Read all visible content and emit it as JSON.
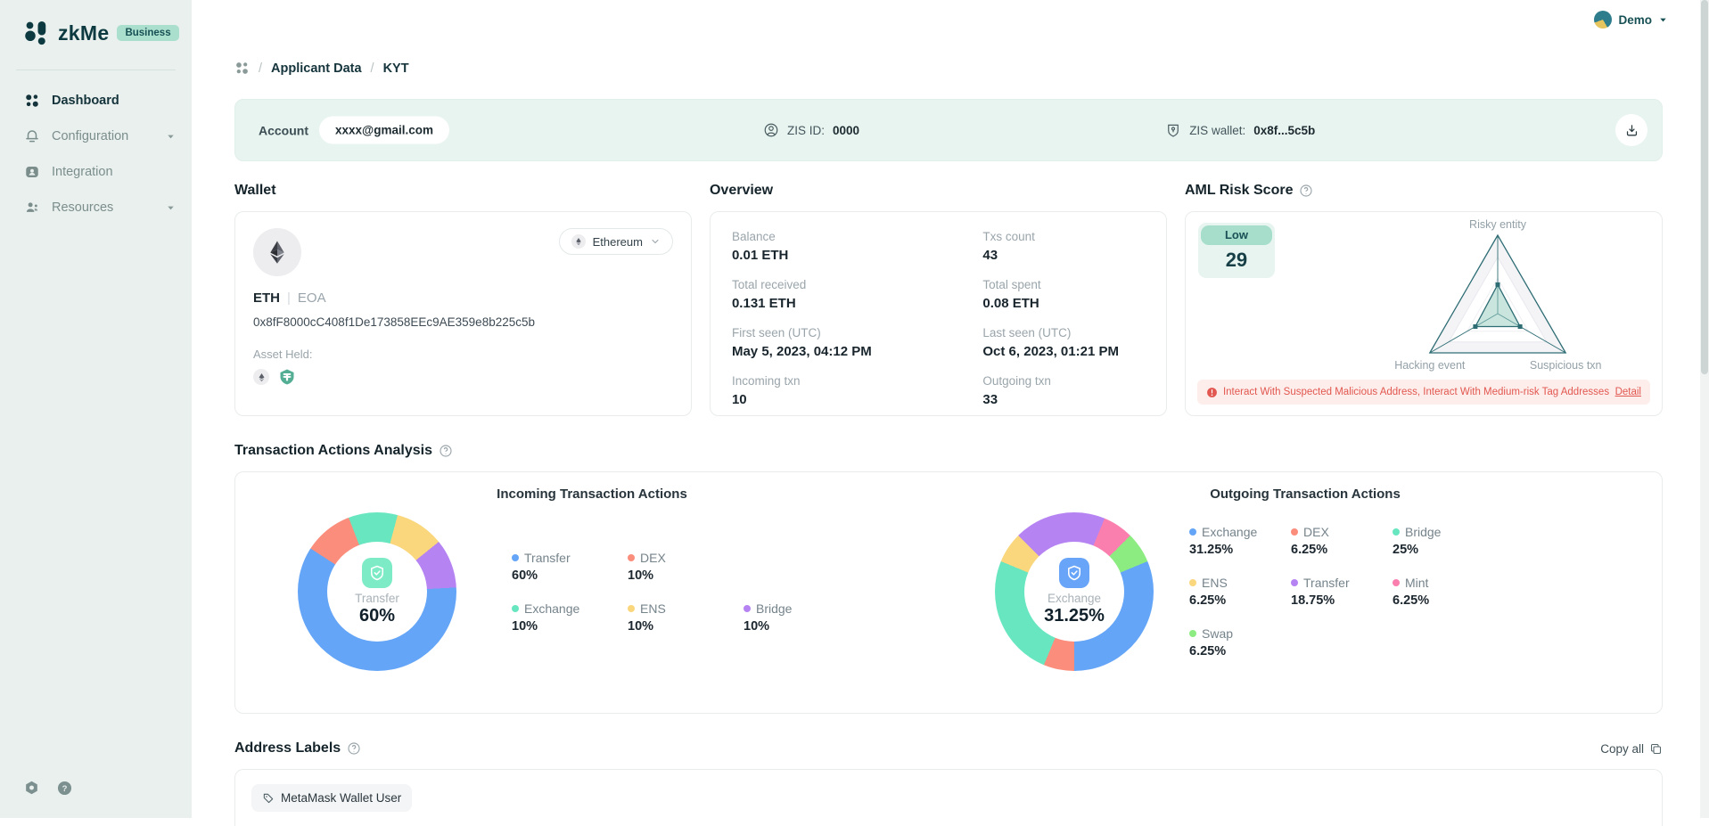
{
  "topbar": {
    "user": "Demo"
  },
  "sidebar": {
    "logo_text": "zkMe",
    "logo_badge": "Business",
    "items": [
      {
        "label": "Dashboard"
      },
      {
        "label": "Configuration"
      },
      {
        "label": "Integration"
      },
      {
        "label": "Resources"
      }
    ]
  },
  "breadcrumb": {
    "items": [
      "Applicant Data",
      "KYT"
    ]
  },
  "account_bar": {
    "account_label": "Account",
    "account_value": "xxxx@gmail.com",
    "zis_id_label": "ZIS ID:",
    "zis_id_value": "0000",
    "zis_wallet_label": "ZIS wallet:",
    "zis_wallet_value": "0x8f...5c5b"
  },
  "wallet": {
    "section_title": "Wallet",
    "network_select": "Ethereum",
    "symbol": "ETH",
    "account_type": "EOA",
    "address": "0x8fF8000cC408f1De173858EEc9AE359e8b225c5b",
    "asset_held_label": "Asset Held:"
  },
  "overview": {
    "section_title": "Overview",
    "stats": [
      {
        "label": "Balance",
        "value": "0.01 ETH"
      },
      {
        "label": "Txs count",
        "value": "43"
      },
      {
        "label": "Total received",
        "value": "0.131 ETH"
      },
      {
        "label": "Total spent",
        "value": "0.08 ETH"
      },
      {
        "label": "First seen (UTC)",
        "value": "May 5, 2023, 04:12 PM"
      },
      {
        "label": "Last seen (UTC)",
        "value": "Oct 6, 2023, 01:21 PM"
      },
      {
        "label": "Incoming txn",
        "value": "10"
      },
      {
        "label": "Outgoing txn",
        "value": "33"
      }
    ]
  },
  "aml": {
    "section_title": "AML Risk Score",
    "level": "Low",
    "score": "29",
    "alert_text": "Interact With Suspected Malicious Address, Interact With Medium-risk Tag Addresses",
    "detail_link": "Detail"
  },
  "transactions": {
    "section_title": "Transaction Actions Analysis"
  },
  "address_labels": {
    "section_title": "Address Labels",
    "copy_all": "Copy all",
    "labels": [
      "MetaMask Wallet User"
    ]
  },
  "colors": {
    "accent_teal": "#1b5056",
    "badge_mint": "#a6decb",
    "alert_red": "#e2574f",
    "sidebar_bg": "#e9f0ee",
    "bar_mint": "#e8f4f0"
  },
  "chart_data": [
    {
      "id": "aml_radar",
      "type": "radar",
      "axes": [
        "Risky entity",
        "Hacking event",
        "Suspicious txn"
      ],
      "values": [
        37,
        33,
        33
      ],
      "max": 100,
      "grid_levels": [
        1,
        0.72,
        0.45
      ],
      "stroke": "#2e6d74",
      "fill": "rgba(147,204,190,0.5)",
      "label_color": "#93a0a7"
    },
    {
      "id": "incoming",
      "type": "pie",
      "title": "Incoming Transaction Actions",
      "center": {
        "label": "Transfer",
        "value": "60%",
        "icon_bg": "#7debc6"
      },
      "start_angle_deg": -21,
      "draw_order": [
        "Exchange",
        "ENS",
        "Bridge",
        "Transfer",
        "DEX"
      ],
      "segments": [
        {
          "label": "Transfer",
          "pct": 60,
          "color": "#64a5f7"
        },
        {
          "label": "DEX",
          "pct": 10,
          "color": "#fb8d7c"
        },
        {
          "label": "Exchange",
          "pct": 10,
          "color": "#68e6c0"
        },
        {
          "label": "ENS",
          "pct": 10,
          "color": "#fad77c"
        },
        {
          "label": "Bridge",
          "pct": 10,
          "color": "#b583f2"
        }
      ],
      "legend_rows": [
        [
          "Transfer",
          "DEX"
        ],
        [
          "Exchange",
          "ENS",
          "Bridge"
        ]
      ],
      "legend_position": "right"
    },
    {
      "id": "outgoing",
      "type": "pie",
      "title": "Outgoing Transaction Actions",
      "center": {
        "label": "Exchange",
        "value": "31.25%",
        "icon_bg": "#68a4f8"
      },
      "start_angle_deg": -45,
      "draw_order": [
        "Transfer",
        "Mint",
        "Swap",
        "Exchange",
        "DEX",
        "Bridge",
        "ENS"
      ],
      "segments": [
        {
          "label": "Exchange",
          "pct": 31.25,
          "color": "#64a5f7"
        },
        {
          "label": "DEX",
          "pct": 6.25,
          "color": "#fb8d7c"
        },
        {
          "label": "Bridge",
          "pct": 25,
          "color": "#68e6c0"
        },
        {
          "label": "ENS",
          "pct": 6.25,
          "color": "#fad77c"
        },
        {
          "label": "Transfer",
          "pct": 18.75,
          "color": "#b583f2"
        },
        {
          "label": "Mint",
          "pct": 6.25,
          "color": "#fa7fae"
        },
        {
          "label": "Swap",
          "pct": 6.25,
          "color": "#8cec81"
        }
      ],
      "legend_rows": [
        [
          "Exchange",
          "DEX",
          "Bridge"
        ],
        [
          "ENS",
          "Transfer",
          "Mint"
        ],
        [
          "Swap"
        ]
      ],
      "legend_position": "right"
    }
  ]
}
